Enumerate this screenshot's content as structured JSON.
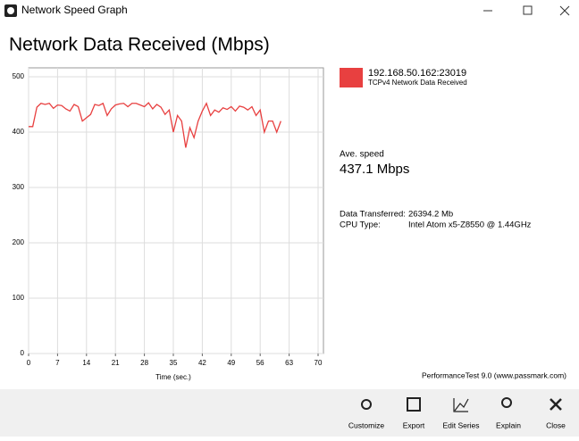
{
  "window": {
    "title": "Network Speed Graph"
  },
  "heading": "Network Data Received (Mbps)",
  "chart_data": {
    "type": "line",
    "x": [
      0,
      1,
      2,
      3,
      4,
      5,
      6,
      7,
      8,
      9,
      10,
      11,
      12,
      13,
      14,
      15,
      16,
      17,
      18,
      19,
      20,
      21,
      22,
      23,
      24,
      25,
      26,
      27,
      28,
      29,
      30,
      31,
      32,
      33,
      34,
      35,
      36,
      37,
      38,
      39,
      40,
      41,
      42,
      43,
      44,
      45,
      46,
      47,
      48,
      49,
      50,
      51,
      52,
      53,
      54,
      55,
      56,
      57,
      58,
      59,
      60,
      61
    ],
    "series": [
      {
        "name": "192.168.50.162:23019",
        "color": "#e84040",
        "values": [
          410,
          410,
          445,
          452,
          450,
          452,
          443,
          449,
          448,
          442,
          438,
          450,
          446,
          420,
          426,
          432,
          450,
          448,
          452,
          430,
          442,
          449,
          451,
          452,
          446,
          452,
          452,
          449,
          446,
          453,
          442,
          450,
          445,
          432,
          440,
          400,
          430,
          420,
          372,
          408,
          390,
          420,
          438,
          452,
          430,
          440,
          436,
          444,
          441,
          446,
          438,
          447,
          445,
          440,
          446,
          430,
          440,
          400,
          420,
          420,
          400,
          420
        ]
      }
    ],
    "xlabel": "Time (sec.)",
    "xlim": [
      0,
      70
    ],
    "ylim": [
      0,
      500
    ],
    "xticks": [
      0,
      7,
      14,
      21,
      28,
      35,
      42,
      49,
      56,
      63,
      70
    ],
    "yticks": [
      0,
      100,
      200,
      300,
      400,
      500
    ],
    "grid": true
  },
  "legend": {
    "subtitle": "TCPv4 Network Data Received"
  },
  "stats": {
    "ave_label": "Ave. speed",
    "ave_value": "437.1 Mbps",
    "rows": [
      [
        "Data Transferred:",
        "26394.2 Mb"
      ],
      [
        "CPU Type:",
        "Intel Atom x5-Z8550 @ 1.44GHz"
      ]
    ]
  },
  "footer": "PerformanceTest 9.0 (www.passmark.com)",
  "toolbar": [
    "Customize",
    "Export",
    "Edit Series",
    "Explain",
    "Close"
  ]
}
